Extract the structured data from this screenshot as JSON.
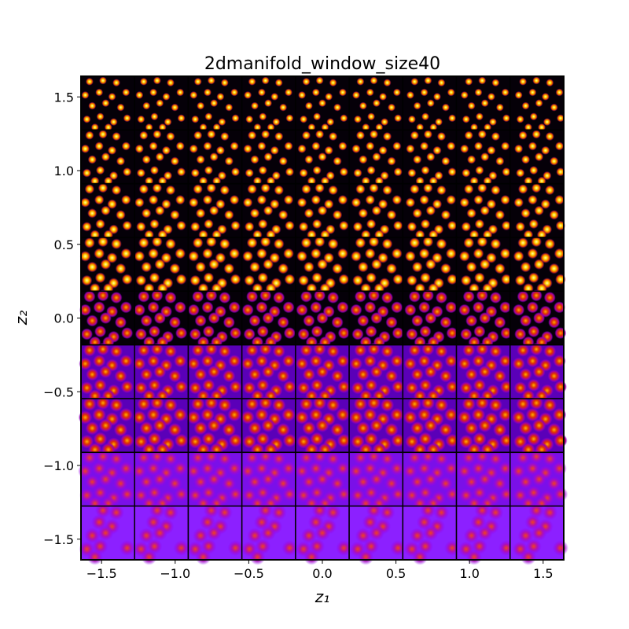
{
  "chart_data": {
    "type": "image-grid",
    "title": "2dmanifold_window_size40",
    "xlabel": "z₁",
    "ylabel": "z₂",
    "xlim": [
      -1.64,
      1.64
    ],
    "ylim": [
      -1.64,
      1.64
    ],
    "xticks": [
      {
        "value": -1.5,
        "label": "−1.5"
      },
      {
        "value": -1.0,
        "label": "−1.0"
      },
      {
        "value": -0.5,
        "label": "−0.5"
      },
      {
        "value": 0,
        "label": "0.0"
      },
      {
        "value": 0.5,
        "label": "0.5"
      },
      {
        "value": 1.0,
        "label": "1.0"
      },
      {
        "value": 1.5,
        "label": "1.5"
      }
    ],
    "yticks": [
      {
        "value": -1.5,
        "label": "−1.5"
      },
      {
        "value": -1.0,
        "label": "−1.0"
      },
      {
        "value": -0.5,
        "label": "−0.5"
      },
      {
        "value": 0,
        "label": "0.0"
      },
      {
        "value": 0.5,
        "label": "0.5"
      },
      {
        "value": 1.0,
        "label": "1.0"
      },
      {
        "value": 1.5,
        "label": "1.5"
      }
    ]
  }
}
